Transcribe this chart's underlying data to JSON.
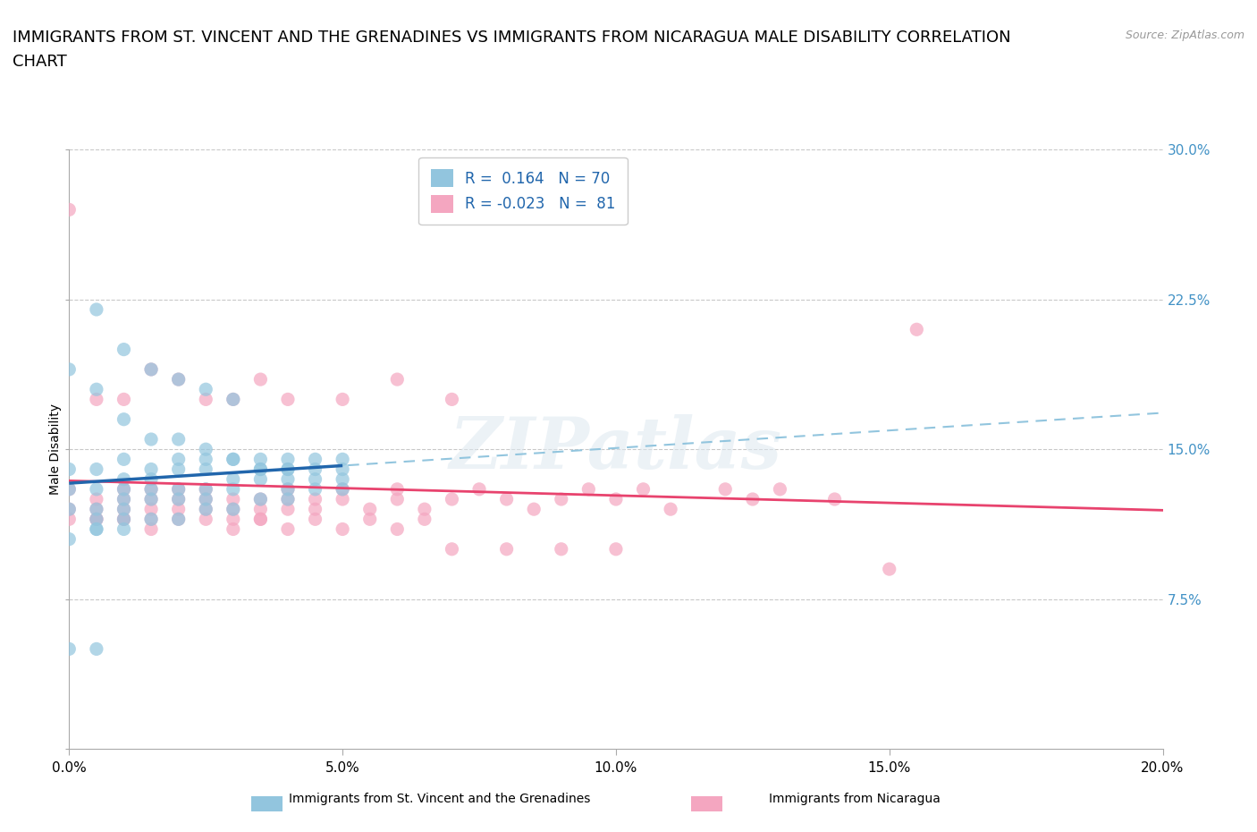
{
  "title_line1": "IMMIGRANTS FROM ST. VINCENT AND THE GRENADINES VS IMMIGRANTS FROM NICARAGUA MALE DISABILITY CORRELATION",
  "title_line2": "CHART",
  "source": "Source: ZipAtlas.com",
  "ylabel": "Male Disability",
  "xlim": [
    0.0,
    0.2
  ],
  "ylim": [
    0.0,
    0.3
  ],
  "xticks": [
    0.0,
    0.05,
    0.1,
    0.15,
    0.2
  ],
  "yticks": [
    0.0,
    0.075,
    0.15,
    0.225,
    0.3
  ],
  "xticklabels": [
    "0.0%",
    "5.0%",
    "10.0%",
    "15.0%",
    "20.0%"
  ],
  "yticklabels": [
    "",
    "7.5%",
    "15.0%",
    "22.5%",
    "30.0%"
  ],
  "series1_color": "#92c5de",
  "series2_color": "#f4a6c0",
  "trend1_color": "#2166ac",
  "trend2_color": "#e8436e",
  "trend1_dashed_color": "#92c5de",
  "R1": 0.164,
  "N1": 70,
  "R2": -0.023,
  "N2": 81,
  "label1": "Immigrants from St. Vincent and the Grenadines",
  "label2": "Immigrants from Nicaragua",
  "legend_color": "#2166ac",
  "background_color": "#ffffff",
  "grid_color": "#cccccc",
  "tick_color_right": "#4292c6",
  "watermark": "ZIPatlas",
  "title_fontsize": 13,
  "axis_label_fontsize": 10,
  "tick_fontsize": 11,
  "legend_fontsize": 12,
  "series1_x": [
    0.0,
    0.0,
    0.0,
    0.0,
    0.005,
    0.005,
    0.005,
    0.005,
    0.005,
    0.01,
    0.01,
    0.01,
    0.01,
    0.01,
    0.01,
    0.015,
    0.015,
    0.015,
    0.015,
    0.02,
    0.02,
    0.02,
    0.02,
    0.025,
    0.025,
    0.025,
    0.025,
    0.03,
    0.03,
    0.03,
    0.035,
    0.035,
    0.035,
    0.04,
    0.04,
    0.04,
    0.04,
    0.045,
    0.045,
    0.045,
    0.05,
    0.05,
    0.05,
    0.005,
    0.01,
    0.015,
    0.02,
    0.025,
    0.03,
    0.035,
    0.04,
    0.045,
    0.05,
    0.0,
    0.005,
    0.01,
    0.015,
    0.02,
    0.025,
    0.03,
    0.035,
    0.04,
    0.005,
    0.01,
    0.015,
    0.02,
    0.025,
    0.03,
    0.0,
    0.005
  ],
  "series1_y": [
    0.12,
    0.13,
    0.14,
    0.105,
    0.13,
    0.12,
    0.14,
    0.11,
    0.115,
    0.13,
    0.12,
    0.115,
    0.145,
    0.135,
    0.125,
    0.135,
    0.125,
    0.13,
    0.14,
    0.13,
    0.125,
    0.14,
    0.145,
    0.13,
    0.125,
    0.14,
    0.145,
    0.135,
    0.13,
    0.145,
    0.135,
    0.14,
    0.145,
    0.14,
    0.145,
    0.13,
    0.135,
    0.14,
    0.145,
    0.135,
    0.145,
    0.14,
    0.135,
    0.11,
    0.11,
    0.115,
    0.115,
    0.12,
    0.12,
    0.125,
    0.125,
    0.13,
    0.13,
    0.19,
    0.18,
    0.165,
    0.155,
    0.155,
    0.15,
    0.145,
    0.14,
    0.14,
    0.22,
    0.2,
    0.19,
    0.185,
    0.18,
    0.175,
    0.05,
    0.05
  ],
  "series2_x": [
    0.0,
    0.0,
    0.0,
    0.005,
    0.005,
    0.005,
    0.01,
    0.01,
    0.01,
    0.01,
    0.015,
    0.015,
    0.015,
    0.015,
    0.02,
    0.02,
    0.02,
    0.025,
    0.025,
    0.025,
    0.03,
    0.03,
    0.03,
    0.035,
    0.035,
    0.035,
    0.04,
    0.04,
    0.04,
    0.045,
    0.045,
    0.05,
    0.05,
    0.055,
    0.06,
    0.06,
    0.065,
    0.07,
    0.075,
    0.08,
    0.085,
    0.09,
    0.095,
    0.1,
    0.105,
    0.11,
    0.12,
    0.125,
    0.13,
    0.14,
    0.15,
    0.005,
    0.01,
    0.015,
    0.02,
    0.025,
    0.03,
    0.035,
    0.04,
    0.045,
    0.05,
    0.055,
    0.06,
    0.065,
    0.07,
    0.08,
    0.09,
    0.1,
    0.0,
    0.005,
    0.01,
    0.015,
    0.02,
    0.025,
    0.03,
    0.035,
    0.04,
    0.05,
    0.06,
    0.07,
    0.155
  ],
  "series2_y": [
    0.12,
    0.13,
    0.115,
    0.125,
    0.12,
    0.115,
    0.125,
    0.12,
    0.115,
    0.13,
    0.125,
    0.12,
    0.115,
    0.13,
    0.125,
    0.12,
    0.13,
    0.125,
    0.12,
    0.13,
    0.125,
    0.12,
    0.115,
    0.125,
    0.12,
    0.115,
    0.125,
    0.12,
    0.13,
    0.125,
    0.12,
    0.125,
    0.13,
    0.12,
    0.125,
    0.13,
    0.12,
    0.125,
    0.13,
    0.125,
    0.12,
    0.125,
    0.13,
    0.125,
    0.13,
    0.12,
    0.13,
    0.125,
    0.13,
    0.125,
    0.09,
    0.115,
    0.115,
    0.11,
    0.115,
    0.115,
    0.11,
    0.115,
    0.11,
    0.115,
    0.11,
    0.115,
    0.11,
    0.115,
    0.1,
    0.1,
    0.1,
    0.1,
    0.27,
    0.175,
    0.175,
    0.19,
    0.185,
    0.175,
    0.175,
    0.185,
    0.175,
    0.175,
    0.185,
    0.175,
    0.21
  ]
}
